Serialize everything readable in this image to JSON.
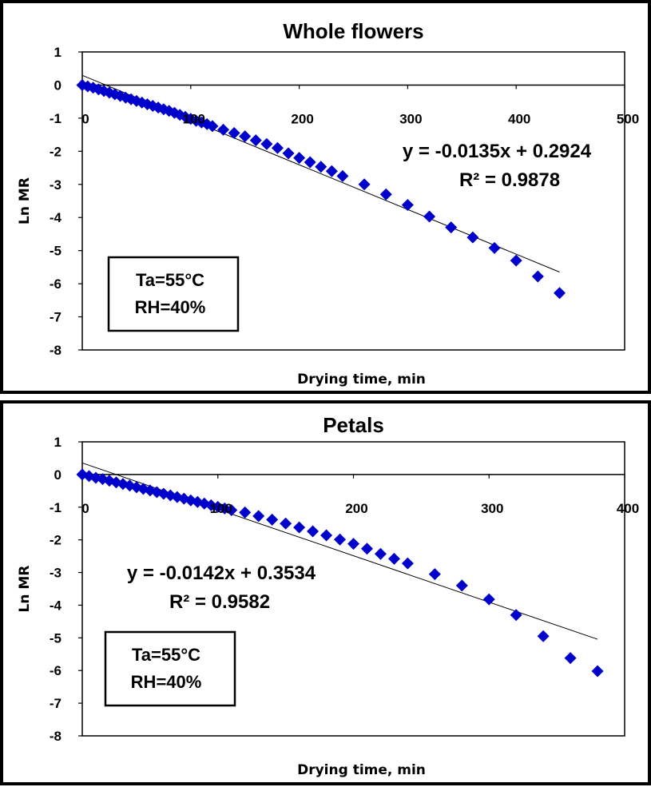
{
  "chart_data": [
    {
      "type": "scatter",
      "title": "Whole flowers",
      "xlabel": "Drying time, min",
      "ylabel": "Ln MR",
      "xlim": [
        0,
        500
      ],
      "ylim": [
        -8,
        1
      ],
      "x_ticks": [
        0,
        100,
        200,
        300,
        400,
        500
      ],
      "y_ticks": [
        1,
        0,
        -1,
        -2,
        -3,
        -4,
        -5,
        -6,
        -7,
        -8
      ],
      "grid": false,
      "marker_color": "#0000cc",
      "trendline": {
        "slope": -0.0135,
        "intercept": 0.2924,
        "x_range": [
          0,
          440
        ]
      },
      "equation_text": "y = -0.0135x + 0.2924",
      "r2_text": "R² = 0.9878",
      "conditions": [
        "Ta=55°C",
        "RH=40%"
      ],
      "series": [
        {
          "x": [
            0,
            5,
            10,
            15,
            20,
            25,
            30,
            35,
            40,
            45,
            50,
            55,
            60,
            65,
            70,
            75,
            80,
            85,
            90,
            95,
            100,
            105,
            110,
            115,
            120,
            130,
            140,
            150,
            160,
            170,
            180,
            190,
            200,
            210,
            220,
            230,
            240,
            260,
            280,
            300,
            320,
            340,
            360,
            380,
            400,
            420,
            440
          ],
          "y": [
            0,
            -0.04,
            -0.08,
            -0.13,
            -0.18,
            -0.23,
            -0.28,
            -0.33,
            -0.38,
            -0.43,
            -0.48,
            -0.53,
            -0.58,
            -0.63,
            -0.68,
            -0.73,
            -0.78,
            -0.84,
            -0.9,
            -0.96,
            -1.02,
            -1.08,
            -1.13,
            -1.18,
            -1.24,
            -1.35,
            -1.45,
            -1.55,
            -1.67,
            -1.78,
            -1.9,
            -2.06,
            -2.2,
            -2.33,
            -2.47,
            -2.6,
            -2.75,
            -3.0,
            -3.3,
            -3.62,
            -3.97,
            -4.3,
            -4.6,
            -4.92,
            -5.3,
            -5.78,
            -6.28
          ]
        }
      ]
    },
    {
      "type": "scatter",
      "title": "Petals",
      "xlabel": "Drying time, min",
      "ylabel": "Ln MR",
      "xlim": [
        0,
        400
      ],
      "ylim": [
        -8,
        1
      ],
      "x_ticks": [
        0,
        100,
        200,
        300,
        400
      ],
      "y_ticks": [
        1,
        0,
        -1,
        -2,
        -3,
        -4,
        -5,
        -6,
        -7,
        -8
      ],
      "grid": false,
      "marker_color": "#0000cc",
      "trendline": {
        "slope": -0.0142,
        "intercept": 0.3534,
        "x_range": [
          0,
          380
        ]
      },
      "equation_text": "y = -0.0142x + 0.3534",
      "r2_text": "R² = 0.9582",
      "conditions": [
        "Ta=55°C",
        "RH=40%"
      ],
      "series": [
        {
          "x": [
            0,
            5,
            10,
            15,
            20,
            25,
            30,
            35,
            40,
            45,
            50,
            55,
            60,
            65,
            70,
            75,
            80,
            85,
            90,
            95,
            100,
            105,
            110,
            120,
            130,
            140,
            150,
            160,
            170,
            180,
            190,
            200,
            210,
            220,
            230,
            240,
            260,
            280,
            300,
            320,
            340,
            360,
            380
          ],
          "y": [
            0,
            -0.05,
            -0.1,
            -0.14,
            -0.19,
            -0.24,
            -0.29,
            -0.34,
            -0.39,
            -0.44,
            -0.49,
            -0.54,
            -0.59,
            -0.64,
            -0.69,
            -0.74,
            -0.79,
            -0.84,
            -0.89,
            -0.94,
            -0.99,
            -1.04,
            -1.09,
            -1.16,
            -1.27,
            -1.38,
            -1.5,
            -1.62,
            -1.74,
            -1.86,
            -1.99,
            -2.12,
            -2.27,
            -2.43,
            -2.58,
            -2.72,
            -3.05,
            -3.4,
            -3.82,
            -4.3,
            -4.95,
            -5.62,
            -6.02
          ]
        }
      ]
    }
  ]
}
